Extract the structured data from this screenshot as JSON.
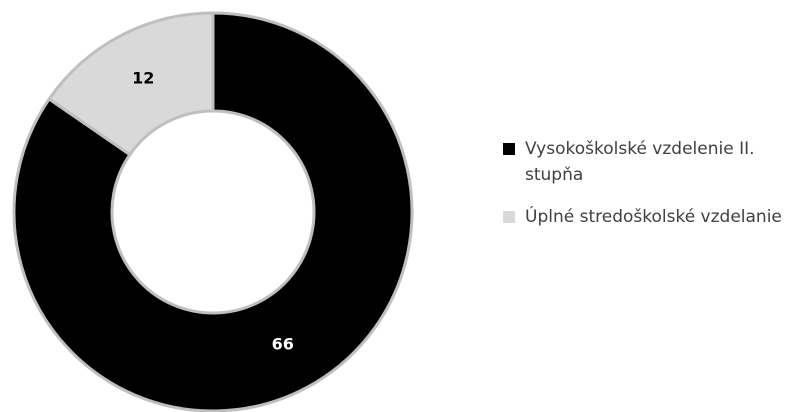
{
  "chart_data": {
    "type": "donut",
    "categories": [
      "Vysokoškolské vzdelenie II. stupňa",
      "Úplné stredoškolské vzdelanie"
    ],
    "values": [
      66,
      12
    ],
    "colors": [
      "#000000",
      "#d9d9d9"
    ],
    "legend": "right"
  }
}
